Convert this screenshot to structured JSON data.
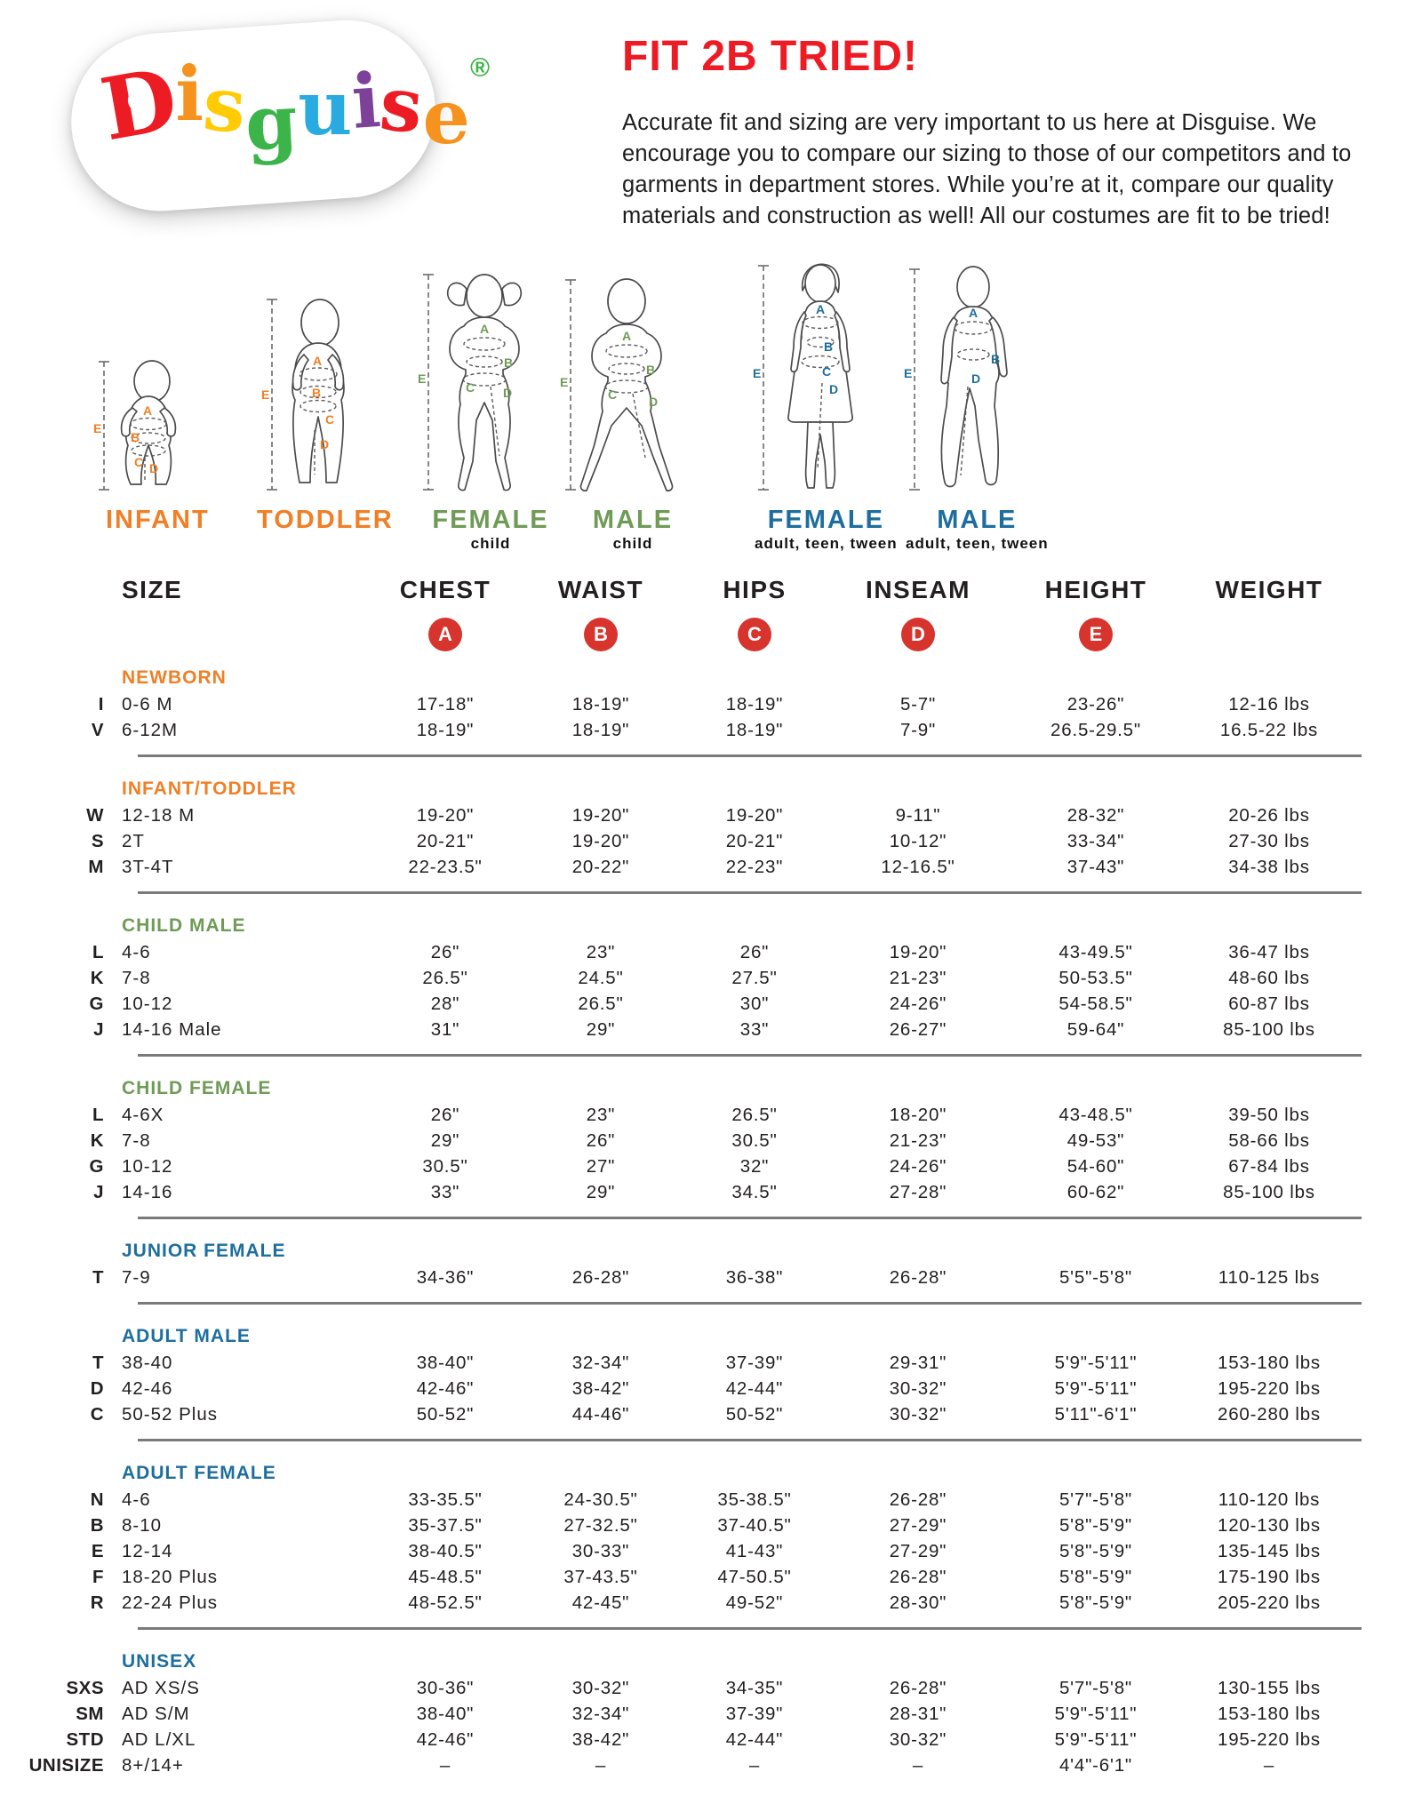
{
  "palette": {
    "red": "#ed1c24",
    "badge-red": "#d6342c",
    "orange": "#f07f26",
    "green": "#6f9b57",
    "blue": "#1d6e9e",
    "ink": "#231f20",
    "divider": "#7a7a7a"
  },
  "logo": {
    "letters": [
      {
        "ch": "D",
        "color": "#ed1c24"
      },
      {
        "ch": "i",
        "color": "#f6921e"
      },
      {
        "ch": "s",
        "color": "#ffcb05"
      },
      {
        "ch": "g",
        "color": "#3bb54a"
      },
      {
        "ch": "u",
        "color": "#29abe2"
      },
      {
        "ch": "i",
        "color": "#7d4199"
      },
      {
        "ch": "s",
        "color": "#ed1c24"
      },
      {
        "ch": "e",
        "color": "#f6921e"
      }
    ],
    "registered": {
      "ch": "®",
      "color": "#3bb54a"
    }
  },
  "header": {
    "title": "FIT 2B TRIED!",
    "paragraph": "Accurate fit and sizing are very important to us here at Disguise. We encourage you to compare our sizing to those of our competitors and to garments in department stores. While you’re at it, compare our quality materials and construction as well! All our costumes are fit to be tried!"
  },
  "figures": [
    {
      "label": "INFANT",
      "sublabel": "",
      "group": "orange",
      "points": [
        "A",
        "B",
        "C",
        "D",
        "E"
      ]
    },
    {
      "label": "TODDLER",
      "sublabel": "",
      "group": "orange",
      "points": [
        "A",
        "B",
        "C",
        "D",
        "E"
      ]
    },
    {
      "label": "FEMALE",
      "sublabel": "child",
      "group": "green",
      "points": [
        "A",
        "B",
        "C",
        "D",
        "E"
      ]
    },
    {
      "label": "MALE",
      "sublabel": "child",
      "group": "green",
      "points": [
        "A",
        "B",
        "C",
        "D",
        "E"
      ]
    },
    {
      "label": "FEMALE",
      "sublabel": "adult, teen, tween",
      "group": "blue",
      "points": [
        "A",
        "B",
        "C",
        "D",
        "E"
      ]
    },
    {
      "label": "MALE",
      "sublabel": "adult, teen, tween",
      "group": "blue",
      "points": [
        "A",
        "B",
        "D",
        "E"
      ]
    }
  ],
  "table": {
    "columns": [
      "SIZE",
      "CHEST",
      "WAIST",
      "HIPS",
      "INSEAM",
      "HEIGHT",
      "WEIGHT"
    ],
    "badges": [
      "A",
      "B",
      "C",
      "D",
      "E"
    ],
    "sections": [
      {
        "heading": "NEWBORN",
        "group": "orange",
        "rows": [
          {
            "letter": "I",
            "size": "0-6 M",
            "chest": "17-18\"",
            "waist": "18-19\"",
            "hips": "18-19\"",
            "inseam": "5-7\"",
            "height": "23-26\"",
            "weight": "12-16 lbs"
          },
          {
            "letter": "V",
            "size": "6-12M",
            "chest": "18-19\"",
            "waist": "18-19\"",
            "hips": "18-19\"",
            "inseam": "7-9\"",
            "height": "26.5-29.5\"",
            "weight": "16.5-22 lbs"
          }
        ]
      },
      {
        "heading": "INFANT/TODDLER",
        "group": "orange",
        "rows": [
          {
            "letter": "W",
            "size": "12-18 M",
            "chest": "19-20\"",
            "waist": "19-20\"",
            "hips": "19-20\"",
            "inseam": "9-11\"",
            "height": "28-32\"",
            "weight": "20-26 lbs"
          },
          {
            "letter": "S",
            "size": "2T",
            "chest": "20-21\"",
            "waist": "19-20\"",
            "hips": "20-21\"",
            "inseam": "10-12\"",
            "height": "33-34\"",
            "weight": "27-30 lbs"
          },
          {
            "letter": "M",
            "size": "3T-4T",
            "chest": "22-23.5\"",
            "waist": "20-22\"",
            "hips": "22-23\"",
            "inseam": "12-16.5\"",
            "height": "37-43\"",
            "weight": "34-38 lbs"
          }
        ]
      },
      {
        "heading": "CHILD MALE",
        "group": "green",
        "rows": [
          {
            "letter": "L",
            "size": "4-6",
            "chest": "26\"",
            "waist": "23\"",
            "hips": "26\"",
            "inseam": "19-20\"",
            "height": "43-49.5\"",
            "weight": "36-47 lbs"
          },
          {
            "letter": "K",
            "size": "7-8",
            "chest": "26.5\"",
            "waist": "24.5\"",
            "hips": "27.5\"",
            "inseam": "21-23\"",
            "height": "50-53.5\"",
            "weight": "48-60 lbs"
          },
          {
            "letter": "G",
            "size": "10-12",
            "chest": "28\"",
            "waist": "26.5\"",
            "hips": "30\"",
            "inseam": "24-26\"",
            "height": "54-58.5\"",
            "weight": "60-87 lbs"
          },
          {
            "letter": "J",
            "size": "14-16 Male",
            "chest": "31\"",
            "waist": "29\"",
            "hips": "33\"",
            "inseam": "26-27\"",
            "height": "59-64\"",
            "weight": "85-100 lbs"
          }
        ]
      },
      {
        "heading": "CHILD FEMALE",
        "group": "green",
        "rows": [
          {
            "letter": "L",
            "size": "4-6X",
            "chest": "26\"",
            "waist": "23\"",
            "hips": "26.5\"",
            "inseam": "18-20\"",
            "height": "43-48.5\"",
            "weight": "39-50 lbs"
          },
          {
            "letter": "K",
            "size": "7-8",
            "chest": "29\"",
            "waist": "26\"",
            "hips": "30.5\"",
            "inseam": "21-23\"",
            "height": "49-53\"",
            "weight": "58-66 lbs"
          },
          {
            "letter": "G",
            "size": "10-12",
            "chest": "30.5\"",
            "waist": "27\"",
            "hips": "32\"",
            "inseam": "24-26\"",
            "height": "54-60\"",
            "weight": "67-84 lbs"
          },
          {
            "letter": "J",
            "size": "14-16",
            "chest": "33\"",
            "waist": "29\"",
            "hips": "34.5\"",
            "inseam": "27-28\"",
            "height": "60-62\"",
            "weight": "85-100 lbs"
          }
        ]
      },
      {
        "heading": "JUNIOR FEMALE",
        "group": "blue",
        "rows": [
          {
            "letter": "T",
            "size": "7-9",
            "chest": "34-36\"",
            "waist": "26-28\"",
            "hips": "36-38\"",
            "inseam": "26-28\"",
            "height": "5'5\"-5'8\"",
            "weight": "110-125 lbs"
          }
        ]
      },
      {
        "heading": "ADULT MALE",
        "group": "blue",
        "rows": [
          {
            "letter": "T",
            "size": "38-40",
            "chest": "38-40\"",
            "waist": "32-34\"",
            "hips": "37-39\"",
            "inseam": "29-31\"",
            "height": "5'9\"-5'11\"",
            "weight": "153-180 lbs"
          },
          {
            "letter": "D",
            "size": "42-46",
            "chest": "42-46\"",
            "waist": "38-42\"",
            "hips": "42-44\"",
            "inseam": "30-32\"",
            "height": "5'9\"-5'11\"",
            "weight": "195-220 lbs"
          },
          {
            "letter": "C",
            "size": "50-52 Plus",
            "chest": "50-52\"",
            "waist": "44-46\"",
            "hips": "50-52\"",
            "inseam": "30-32\"",
            "height": "5'11\"-6'1\"",
            "weight": "260-280 lbs"
          }
        ]
      },
      {
        "heading": "ADULT FEMALE",
        "group": "blue",
        "rows": [
          {
            "letter": "N",
            "size": "4-6",
            "chest": "33-35.5\"",
            "waist": "24-30.5\"",
            "hips": "35-38.5\"",
            "inseam": "26-28\"",
            "height": "5'7\"-5'8\"",
            "weight": "110-120 lbs"
          },
          {
            "letter": "B",
            "size": "8-10",
            "chest": "35-37.5\"",
            "waist": "27-32.5\"",
            "hips": "37-40.5\"",
            "inseam": "27-29\"",
            "height": "5'8\"-5'9\"",
            "weight": "120-130 lbs"
          },
          {
            "letter": "E",
            "size": "12-14",
            "chest": "38-40.5\"",
            "waist": "30-33\"",
            "hips": "41-43\"",
            "inseam": "27-29\"",
            "height": "5'8\"-5'9\"",
            "weight": "135-145 lbs"
          },
          {
            "letter": "F",
            "size": "18-20 Plus",
            "chest": "45-48.5\"",
            "waist": "37-43.5\"",
            "hips": "47-50.5\"",
            "inseam": "26-28\"",
            "height": "5'8\"-5'9\"",
            "weight": "175-190 lbs"
          },
          {
            "letter": "R",
            "size": "22-24 Plus",
            "chest": "48-52.5\"",
            "waist": "42-45\"",
            "hips": "49-52\"",
            "inseam": "28-30\"",
            "height": "5'8\"-5'9\"",
            "weight": "205-220 lbs"
          }
        ]
      },
      {
        "heading": "UNISEX",
        "group": "blue",
        "rows": [
          {
            "letter": "SXS",
            "size": "AD XS/S",
            "chest": "30-36\"",
            "waist": "30-32\"",
            "hips": "34-35\"",
            "inseam": "26-28\"",
            "height": "5'7\"-5'8\"",
            "weight": "130-155 lbs"
          },
          {
            "letter": "SM",
            "size": "AD S/M",
            "chest": "38-40\"",
            "waist": "32-34\"",
            "hips": "37-39\"",
            "inseam": "28-31\"",
            "height": "5'9\"-5'11\"",
            "weight": "153-180 lbs"
          },
          {
            "letter": "STD",
            "size": "AD L/XL",
            "chest": "42-46\"",
            "waist": "38-42\"",
            "hips": "42-44\"",
            "inseam": "30-32\"",
            "height": "5'9\"-5'11\"",
            "weight": "195-220 lbs"
          },
          {
            "letter": "UNISIZE",
            "size": "8+/14+",
            "chest": "–",
            "waist": "–",
            "hips": "–",
            "inseam": "–",
            "height": "4'4\"-6'1\"",
            "weight": "–"
          }
        ]
      }
    ]
  }
}
